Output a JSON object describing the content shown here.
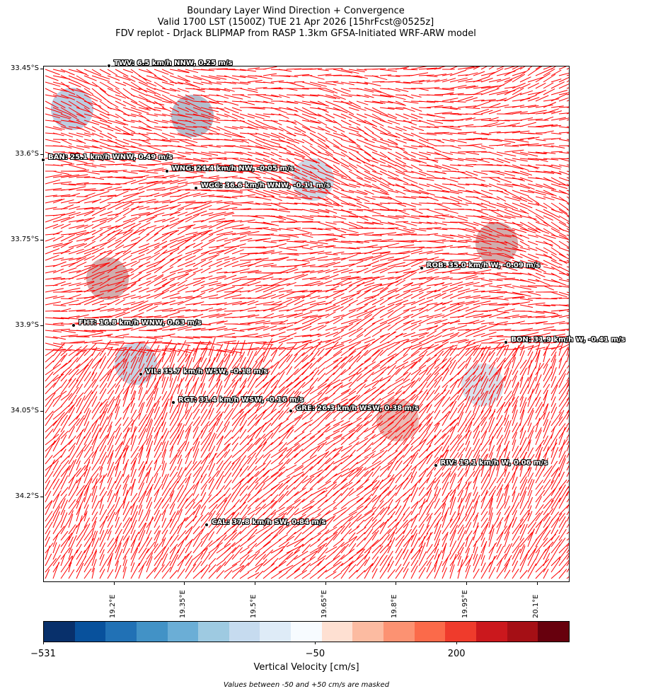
{
  "title": {
    "line1": "Boundary Layer Wind Direction + Convergence",
    "line2": "Valid 1700 LST (1500Z) TUE 21 Apr 2026 [15hrFcst@0525z]",
    "line3": "FDV replot - DrJack BLIPMAP from RASP 1.3km GFSA-Initiated WRF-ARW model"
  },
  "map": {
    "lat_range": [
      -34.35,
      -33.445
    ],
    "lon_range": [
      19.05,
      20.17
    ],
    "lat_labels": [
      {
        "label": "33.45°S",
        "lat": -33.45
      },
      {
        "label": "33.6°S",
        "lat": -33.6
      },
      {
        "label": "33.75°S",
        "lat": -33.75
      },
      {
        "label": "33.9°S",
        "lat": -33.9
      },
      {
        "label": "34.05°S",
        "lat": -34.05
      },
      {
        "label": "34.2°S",
        "lat": -34.2
      }
    ],
    "lon_labels": [
      {
        "label": "19.2°E",
        "lon": 19.2
      },
      {
        "label": "19.35°E",
        "lon": 19.35
      },
      {
        "label": "19.5°E",
        "lon": 19.5
      },
      {
        "label": "19.65°E",
        "lon": 19.65
      },
      {
        "label": "19.8°E",
        "lon": 19.8
      },
      {
        "label": "19.95°E",
        "lon": 19.95
      },
      {
        "label": "20.1°E",
        "lon": 20.1
      }
    ],
    "vector_color": "#ff0000",
    "stations": [
      {
        "code": "TWV",
        "label": "TWV: 6.5 km/h NNW, 0.25 m/s",
        "lat": -33.445,
        "lon": 19.19
      },
      {
        "code": "BAN",
        "label": "BAN: 25.1 km/h WNW, 0.49 m/s",
        "lat": -33.61,
        "lon": 19.05
      },
      {
        "code": "WNG",
        "label": "WNG: 24.4 km/h NW, -0.05 m/s",
        "lat": -33.63,
        "lon": 19.313
      },
      {
        "code": "WGC",
        "label": "WGC: 36.6 km/h WNW, -0.11 m/s",
        "lat": -33.66,
        "lon": 19.375
      },
      {
        "code": "ROB",
        "label": "ROB: 35.0 km/h W, -0.09 m/s",
        "lat": -33.8,
        "lon": 19.855
      },
      {
        "code": "FHT",
        "label": "FHT: 16.8 km/h WNW, 0.63 m/s",
        "lat": -33.9,
        "lon": 19.115
      },
      {
        "code": "BON",
        "label": "BON: 31.9 km/h W, -0.41 m/s",
        "lat": -33.93,
        "lon": 20.035
      },
      {
        "code": "VIL",
        "label": "VIL: 35.7 km/h WSW, -0.18 m/s",
        "lat": -33.985,
        "lon": 19.257
      },
      {
        "code": "RGT",
        "label": "RGT: 31.4 km/h WSW, -0.16 m/s",
        "lat": -34.035,
        "lon": 19.327
      },
      {
        "code": "GRE",
        "label": "GRE: 26.3 km/h WSW, 0.38 m/s",
        "lat": -34.05,
        "lon": 19.577
      },
      {
        "code": "RIV",
        "label": "RIV: 19.1 km/h W, 0.06 m/s",
        "lat": -34.145,
        "lon": 19.885
      },
      {
        "code": "CAL",
        "label": "CAL: 37.8 km/h SW, 0.84 m/s",
        "lat": -34.25,
        "lon": 19.398
      }
    ]
  },
  "colorbar": {
    "title": "Vertical Velocity [cm/s]",
    "min": -531,
    "max": 400,
    "tick_labels": [
      {
        "label": "−531",
        "value": -531
      },
      {
        "label": "−50",
        "value": -50
      },
      {
        "label": "200",
        "value": 200
      }
    ],
    "colors": [
      "#08306b",
      "#08519c",
      "#2171b5",
      "#4292c6",
      "#6baed6",
      "#9ecae1",
      "#c6dbef",
      "#deebf7",
      "#f7fbff",
      "#fee0d2",
      "#fcbba1",
      "#fc9272",
      "#fb6a4a",
      "#ef3b2c",
      "#cb181d",
      "#a50f15",
      "#67000d"
    ]
  },
  "footnote": "Values between -50 and +50 cm/s are masked"
}
